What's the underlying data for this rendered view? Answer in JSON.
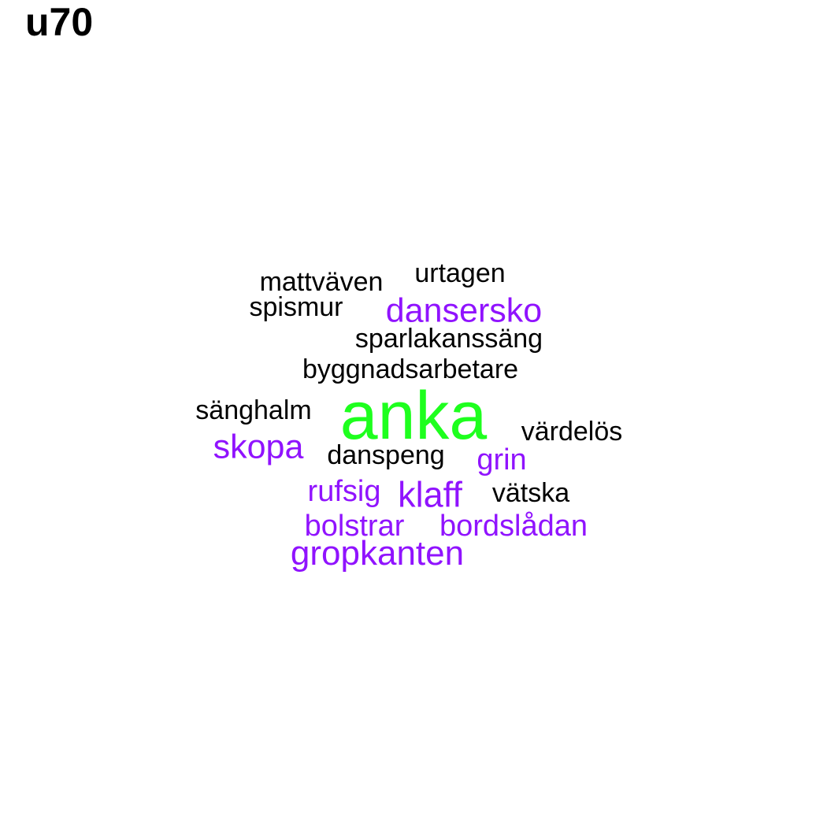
{
  "title": "u70",
  "colors": {
    "black": "#000000",
    "purple": "#9013FE",
    "green": "#1EFF1E"
  },
  "words": [
    {
      "text": "anka",
      "color": "green"
    },
    {
      "text": "dansersko",
      "color": "purple"
    },
    {
      "text": "skopa",
      "color": "purple"
    },
    {
      "text": "grin",
      "color": "purple"
    },
    {
      "text": "rufsig",
      "color": "purple"
    },
    {
      "text": "klaff",
      "color": "purple"
    },
    {
      "text": "bolstrar",
      "color": "purple"
    },
    {
      "text": "bordslådan",
      "color": "purple"
    },
    {
      "text": "gropkanten",
      "color": "purple"
    },
    {
      "text": "mattväven",
      "color": "black"
    },
    {
      "text": "urtagen",
      "color": "black"
    },
    {
      "text": "spismur",
      "color": "black"
    },
    {
      "text": "sparlakanssäng",
      "color": "black"
    },
    {
      "text": "byggnadsarbetare",
      "color": "black"
    },
    {
      "text": "sänghalm",
      "color": "black"
    },
    {
      "text": "värdelös",
      "color": "black"
    },
    {
      "text": "danspeng",
      "color": "black"
    },
    {
      "text": "vätska",
      "color": "black"
    }
  ]
}
